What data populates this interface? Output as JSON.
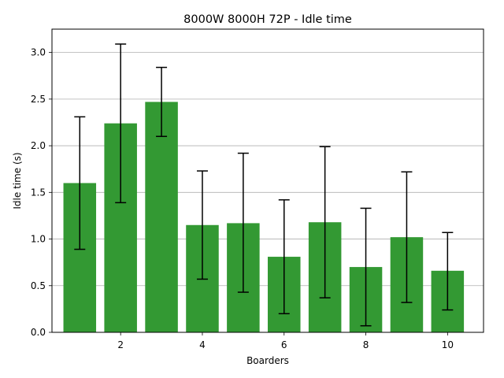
{
  "chart_data": {
    "type": "bar",
    "title": "8000W 8000H 72P - Idle time",
    "xlabel": "Boarders",
    "ylabel": "Idle time (s)",
    "x": [
      1,
      2,
      3,
      4,
      5,
      6,
      7,
      8,
      9,
      10
    ],
    "values": [
      1.6,
      2.24,
      2.47,
      1.15,
      1.17,
      0.81,
      1.18,
      0.7,
      1.02,
      0.66
    ],
    "error_low": [
      0.89,
      1.39,
      2.1,
      0.57,
      0.43,
      0.2,
      0.37,
      0.07,
      0.32,
      0.24
    ],
    "error_high": [
      2.31,
      3.09,
      2.84,
      1.73,
      1.92,
      1.42,
      1.99,
      1.33,
      1.72,
      1.07
    ],
    "xticks": [
      2,
      4,
      6,
      8,
      10
    ],
    "xtick_labels": [
      "2",
      "4",
      "6",
      "8",
      "10"
    ],
    "yticks": [
      0.0,
      0.5,
      1.0,
      1.5,
      2.0,
      2.5,
      3.0
    ],
    "ytick_labels": [
      "0.0",
      "0.5",
      "1.0",
      "1.5",
      "2.0",
      "2.5",
      "3.0"
    ],
    "xlim": [
      0.32,
      10.88
    ],
    "ylim": [
      0,
      3.25
    ],
    "grid": "horizontal",
    "bar_color": "#339933",
    "error_color": "#000000"
  }
}
